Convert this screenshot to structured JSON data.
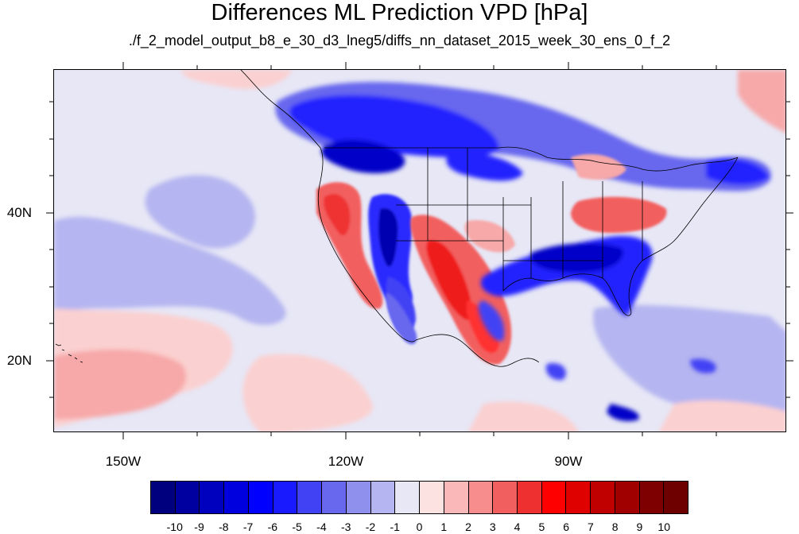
{
  "title": "Differences ML Prediction VPD [hPa]",
  "subtitle": "./f_2_model_output_b8_e_30_d3_lneg5/diffs_nn_dataset_2015_week_30_ens_0_f_2",
  "map": {
    "lat_labels": [
      "40N",
      "20N"
    ],
    "lon_labels": [
      "150W",
      "120W",
      "90W"
    ],
    "background_color": "#e7e7f6"
  },
  "colorbar": {
    "labels": [
      "-10",
      "-9",
      "-8",
      "-7",
      "-6",
      "-5",
      "-4",
      "-3",
      "-2",
      "-1",
      "0",
      "1",
      "2",
      "3",
      "4",
      "5",
      "6",
      "7",
      "8",
      "9",
      "10"
    ],
    "colors": [
      "#00007f",
      "#0000a0",
      "#0000bf",
      "#0000df",
      "#0000ff",
      "#1a1aff",
      "#4242f5",
      "#6868ef",
      "#8f8fee",
      "#b5b5f1",
      "#e7e7f6",
      "#fde2e2",
      "#fbb8b8",
      "#f78d8d",
      "#f25f5f",
      "#ef3030",
      "#ff0000",
      "#df0000",
      "#c00000",
      "#a00000",
      "#7f0000",
      "#6f0000"
    ]
  }
}
